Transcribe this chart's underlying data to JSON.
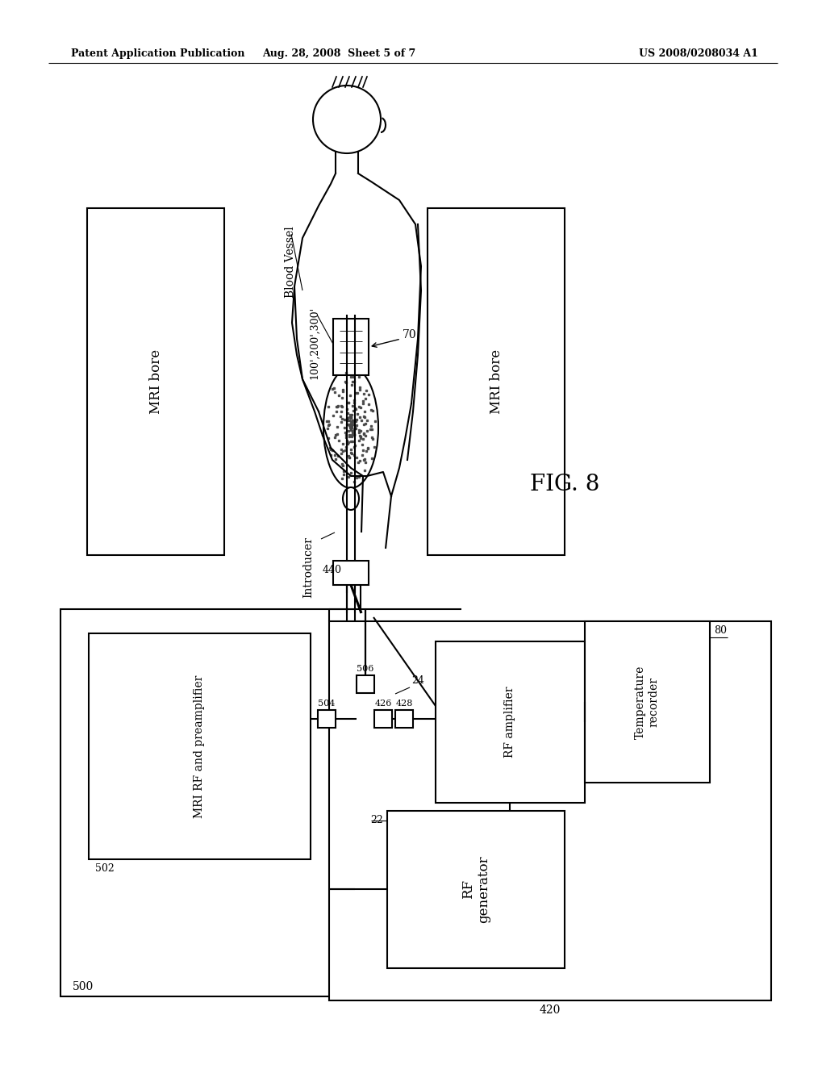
{
  "header_left": "Patent Application Publication",
  "header_center": "Aug. 28, 2008  Sheet 5 of 7",
  "header_right": "US 2008/0208034 A1",
  "fig_label": "FIG. 8",
  "bg": "#ffffff",
  "lc": "#000000",
  "labels": {
    "blood_vessel": "Blood Vessel",
    "mri_bore_left": "MRI bore",
    "mri_bore_right": "MRI bore",
    "introducer": "Introducer",
    "mri_rf": "MRI RF and preamplifier",
    "rf_amplifier": "RF amplifier",
    "rf_generator": "RF\ngenerator",
    "temp_recorder": "Temperature\nrecorder",
    "ref_devices": "100',200',300'"
  },
  "refs": {
    "r22": "22",
    "r24": "24",
    "r70": "70",
    "r80": "80",
    "r420": "420",
    "r426": "426",
    "r428": "428",
    "r440": "440",
    "r500": "500",
    "r502": "502",
    "r504": "504",
    "r506": "506"
  }
}
